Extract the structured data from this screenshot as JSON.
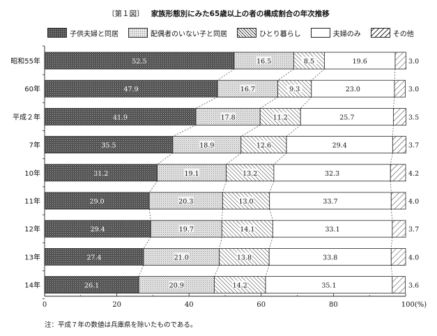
{
  "figure_label": "〔第１図〕",
  "title": "家族形態別にみた65歳以上の者の構成割合の年次推移",
  "note": "注：平成７年の数値は兵庫県を除いたものである。",
  "colors": {
    "child_couple": "#4a4a4a",
    "unmarried_child": "#d9d9d9",
    "single": "#ffffff",
    "couple_only": "#ffffff",
    "other": "#ffffff",
    "border": "#222222"
  },
  "chart_data": {
    "type": "bar",
    "orientation": "horizontal",
    "stacked": true,
    "categories": [
      "昭和55年",
      "60年",
      "平成２年",
      "7年",
      "10年",
      "11年",
      "12年",
      "13年",
      "14年"
    ],
    "series": [
      {
        "name": "子供夫婦と同居",
        "pattern": "dark-dots",
        "values": [
          52.5,
          47.9,
          41.9,
          35.5,
          31.2,
          29.0,
          29.4,
          27.4,
          26.1
        ]
      },
      {
        "name": "配偶者のいない子と同居",
        "pattern": "light-dots",
        "values": [
          16.5,
          16.7,
          17.8,
          18.9,
          19.1,
          20.3,
          19.7,
          21.0,
          20.9
        ]
      },
      {
        "name": "ひとり暮らし",
        "pattern": "dense-hatch",
        "values": [
          8.5,
          9.3,
          11.2,
          12.6,
          13.2,
          13.0,
          14.1,
          13.8,
          14.2
        ]
      },
      {
        "name": "夫婦のみ",
        "pattern": "plain",
        "values": [
          19.6,
          23.0,
          25.7,
          29.4,
          32.3,
          33.7,
          33.1,
          33.8,
          35.1
        ]
      },
      {
        "name": "その他",
        "pattern": "wide-hatch",
        "values": [
          3.0,
          3.0,
          3.5,
          3.7,
          4.2,
          4.0,
          3.7,
          4.0,
          3.6
        ]
      }
    ],
    "value_labels": [
      [
        "52.5",
        "16.5",
        "8.5",
        "19.6",
        "3.0"
      ],
      [
        "47.9",
        "16.7",
        "9.3",
        "23.0",
        "3.0"
      ],
      [
        "41.9",
        "17.8",
        "11.2",
        "25.7",
        "3.5"
      ],
      [
        "35.5",
        "18.9",
        "12.6",
        "29.4",
        "3.7"
      ],
      [
        "31.2",
        "19.1",
        "13.2",
        "32.3",
        "4.2"
      ],
      [
        "29.0",
        "20.3",
        "13.0",
        "33.7",
        "4.0"
      ],
      [
        "29.4",
        "19.7",
        "14.1",
        "33.1",
        "3.7"
      ],
      [
        "27.4",
        "21.0",
        "13.8",
        "33.8",
        "4.0"
      ],
      [
        "26.1",
        "20.9",
        "14.2",
        "35.1",
        "3.6"
      ]
    ],
    "xlim": [
      0,
      100
    ],
    "xticks": [
      0,
      20,
      40,
      60,
      80,
      100
    ],
    "xtick_labels": [
      "0",
      "20",
      "40",
      "60",
      "80",
      "100"
    ],
    "xunit": "(%)",
    "connector_lines": "dashed",
    "legend_position": "top"
  }
}
